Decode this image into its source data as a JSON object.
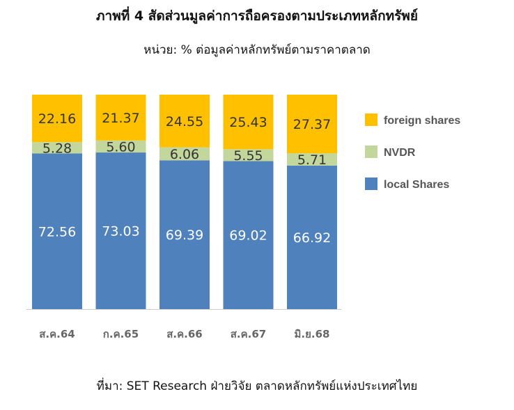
{
  "header": {
    "title": "ภาพที่ 4 สัดส่วนมูลค่าการถือครองตามประเภทหลักทรัพย์",
    "subtitle": "หน่วย: % ต่อมูลค่าหลักทรัพย์ตามราคาตลาด"
  },
  "footer": {
    "source": "ที่มา: SET Research ฝ่ายวิจัย ตลาดหลักทรัพย์แห่งประเทศไทย"
  },
  "chart_data": {
    "type": "bar",
    "stacked": true,
    "categories": [
      "ส.ค.64",
      "ก.ค.65",
      "ส.ค.66",
      "ส.ค.67",
      "มิ.ย.68"
    ],
    "series": [
      {
        "name": "local Shares",
        "color": "#4f81bd",
        "label_color": "#ffffff",
        "values": [
          72.56,
          73.03,
          69.39,
          69.02,
          66.92
        ]
      },
      {
        "name": "NVDR",
        "color": "#c3d69b",
        "label_color": "#333333",
        "values": [
          5.28,
          5.6,
          6.06,
          5.55,
          5.71
        ]
      },
      {
        "name": "foreign shares",
        "color": "#ffc000",
        "label_color": "#333333",
        "values": [
          22.16,
          21.37,
          24.55,
          25.43,
          27.37
        ]
      }
    ],
    "ylim": [
      0,
      100
    ],
    "legend_position": "right",
    "grid": false
  }
}
